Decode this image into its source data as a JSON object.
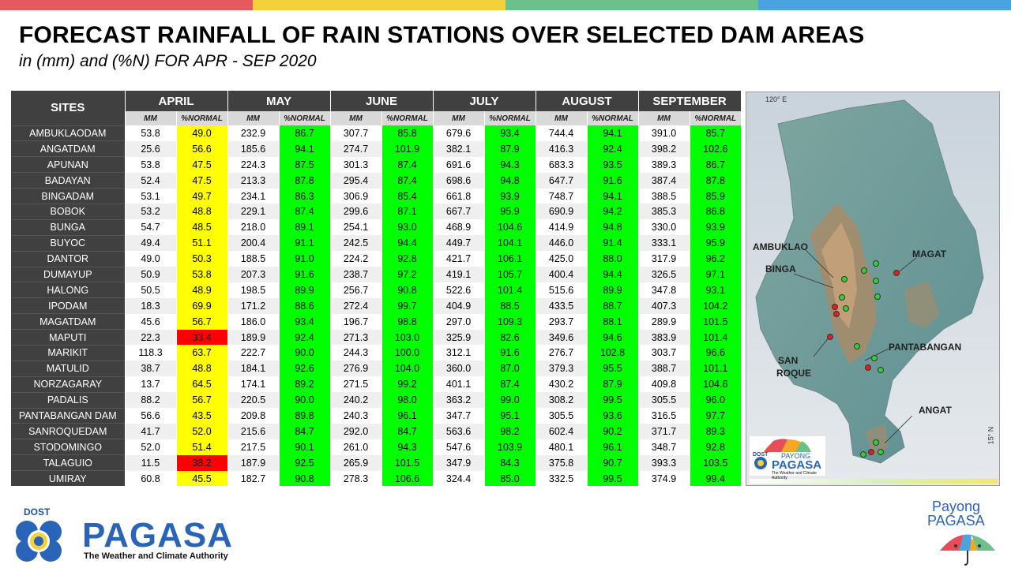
{
  "colors": {
    "header_bg": "#404040",
    "yellow": "#ffff00",
    "green": "#00ff00",
    "red": "#ff0000",
    "topbar": [
      "#e65a5f",
      "#f2d13a",
      "#6cc08b",
      "#4aa3df"
    ]
  },
  "title": "FORECAST RAINFALL OF RAIN STATIONS OVER SELECTED DAM AREAS",
  "subtitle": "in (mm) and (%N) FOR APR - SEP 2020",
  "chart_data": {
    "type": "table",
    "row_header": "SITES",
    "months": [
      "APRIL",
      "MAY",
      "JUNE",
      "JULY",
      "AUGUST",
      "SEPTEMBER"
    ],
    "sub_headers": [
      "MM",
      "%NORMAL"
    ],
    "rows": [
      {
        "site": "AMBUKLAODAM",
        "values": [
          [
            53.8,
            49.0
          ],
          [
            232.9,
            86.7
          ],
          [
            307.7,
            85.8
          ],
          [
            679.6,
            93.4
          ],
          [
            744.4,
            94.1
          ],
          [
            391.0,
            85.7
          ]
        ]
      },
      {
        "site": "ANGATDAM",
        "values": [
          [
            25.6,
            56.6
          ],
          [
            185.6,
            94.1
          ],
          [
            274.7,
            101.9
          ],
          [
            382.1,
            87.9
          ],
          [
            416.3,
            92.4
          ],
          [
            398.2,
            102.6
          ]
        ]
      },
      {
        "site": "APUNAN",
        "values": [
          [
            53.8,
            47.5
          ],
          [
            224.3,
            87.5
          ],
          [
            301.3,
            87.4
          ],
          [
            691.6,
            94.3
          ],
          [
            683.3,
            93.5
          ],
          [
            389.3,
            86.7
          ]
        ]
      },
      {
        "site": "BADAYAN",
        "values": [
          [
            52.4,
            47.5
          ],
          [
            213.3,
            87.8
          ],
          [
            295.4,
            87.4
          ],
          [
            698.6,
            94.8
          ],
          [
            647.7,
            91.6
          ],
          [
            387.4,
            87.8
          ]
        ]
      },
      {
        "site": "BINGADAM",
        "values": [
          [
            53.1,
            49.7
          ],
          [
            234.1,
            86.3
          ],
          [
            306.9,
            85.4
          ],
          [
            661.8,
            93.9
          ],
          [
            748.7,
            94.1
          ],
          [
            388.5,
            85.9
          ]
        ]
      },
      {
        "site": "BOBOK",
        "values": [
          [
            53.2,
            48.8
          ],
          [
            229.1,
            87.4
          ],
          [
            299.6,
            87.1
          ],
          [
            667.7,
            95.9
          ],
          [
            690.9,
            94.2
          ],
          [
            385.3,
            86.8
          ]
        ]
      },
      {
        "site": "BUNGA",
        "values": [
          [
            54.7,
            48.5
          ],
          [
            218.0,
            89.1
          ],
          [
            254.1,
            93.0
          ],
          [
            468.9,
            104.6
          ],
          [
            414.9,
            94.8
          ],
          [
            330.0,
            93.9
          ]
        ]
      },
      {
        "site": "BUYOC",
        "values": [
          [
            49.4,
            51.1
          ],
          [
            200.4,
            91.1
          ],
          [
            242.5,
            94.4
          ],
          [
            449.7,
            104.1
          ],
          [
            446.0,
            91.4
          ],
          [
            333.1,
            95.9
          ]
        ]
      },
      {
        "site": "DANTOR",
        "values": [
          [
            49.0,
            50.3
          ],
          [
            188.5,
            91.0
          ],
          [
            224.2,
            92.8
          ],
          [
            421.7,
            106.1
          ],
          [
            425.0,
            88.0
          ],
          [
            317.9,
            96.2
          ]
        ]
      },
      {
        "site": "DUMAYUP",
        "values": [
          [
            50.9,
            53.8
          ],
          [
            207.3,
            91.6
          ],
          [
            238.7,
            97.2
          ],
          [
            419.1,
            105.7
          ],
          [
            400.4,
            94.4
          ],
          [
            326.5,
            97.1
          ]
        ]
      },
      {
        "site": "HALONG",
        "values": [
          [
            50.5,
            48.9
          ],
          [
            198.5,
            89.9
          ],
          [
            256.7,
            90.8
          ],
          [
            522.6,
            101.4
          ],
          [
            515.6,
            89.9
          ],
          [
            347.8,
            93.1
          ]
        ]
      },
      {
        "site": "IPODAM",
        "values": [
          [
            18.3,
            69.9
          ],
          [
            171.2,
            88.6
          ],
          [
            272.4,
            99.7
          ],
          [
            404.9,
            88.5
          ],
          [
            433.5,
            88.7
          ],
          [
            407.3,
            104.2
          ]
        ]
      },
      {
        "site": "MAGATDAM",
        "values": [
          [
            45.6,
            56.7
          ],
          [
            186.0,
            93.4
          ],
          [
            196.7,
            98.8
          ],
          [
            297.0,
            109.3
          ],
          [
            293.7,
            88.1
          ],
          [
            289.9,
            101.5
          ]
        ]
      },
      {
        "site": "MAPUTI",
        "values": [
          [
            22.3,
            33.4
          ],
          [
            189.9,
            92.4
          ],
          [
            271.3,
            103.0
          ],
          [
            325.9,
            82.6
          ],
          [
            349.6,
            94.6
          ],
          [
            383.9,
            101.4
          ]
        ]
      },
      {
        "site": "MARIKIT",
        "values": [
          [
            118.3,
            63.7
          ],
          [
            222.7,
            90.0
          ],
          [
            244.3,
            100.0
          ],
          [
            312.1,
            91.6
          ],
          [
            276.7,
            102.8
          ],
          [
            303.7,
            96.6
          ]
        ]
      },
      {
        "site": "MATULID",
        "values": [
          [
            38.7,
            48.8
          ],
          [
            184.1,
            92.6
          ],
          [
            276.9,
            104.0
          ],
          [
            360.0,
            87.0
          ],
          [
            379.3,
            95.5
          ],
          [
            388.7,
            101.1
          ]
        ]
      },
      {
        "site": "NORZAGARAY",
        "values": [
          [
            13.7,
            64.5
          ],
          [
            174.1,
            89.2
          ],
          [
            271.5,
            99.2
          ],
          [
            401.1,
            87.4
          ],
          [
            430.2,
            87.9
          ],
          [
            409.8,
            104.6
          ]
        ]
      },
      {
        "site": "PADALIS",
        "values": [
          [
            88.2,
            56.7
          ],
          [
            220.5,
            90.0
          ],
          [
            240.2,
            98.0
          ],
          [
            363.2,
            99.0
          ],
          [
            308.2,
            99.5
          ],
          [
            305.5,
            96.0
          ]
        ]
      },
      {
        "site": "PANTABANGAN DAM",
        "values": [
          [
            56.6,
            43.5
          ],
          [
            209.8,
            89.8
          ],
          [
            240.3,
            96.1
          ],
          [
            347.7,
            95.1
          ],
          [
            305.5,
            93.6
          ],
          [
            316.5,
            97.7
          ]
        ]
      },
      {
        "site": "SANROQUEDAM",
        "values": [
          [
            41.7,
            52.0
          ],
          [
            215.6,
            84.7
          ],
          [
            292.0,
            84.7
          ],
          [
            563.6,
            98.2
          ],
          [
            602.4,
            90.2
          ],
          [
            371.7,
            89.3
          ]
        ]
      },
      {
        "site": "STODOMINGO",
        "values": [
          [
            52.0,
            51.4
          ],
          [
            217.5,
            90.1
          ],
          [
            261.0,
            94.3
          ],
          [
            547.6,
            103.9
          ],
          [
            480.1,
            96.1
          ],
          [
            348.7,
            92.8
          ]
        ]
      },
      {
        "site": "TALAGUIO",
        "values": [
          [
            11.5,
            38.2
          ],
          [
            187.9,
            92.5
          ],
          [
            265.9,
            101.5
          ],
          [
            347.9,
            84.3
          ],
          [
            375.8,
            90.7
          ],
          [
            393.3,
            103.5
          ]
        ]
      },
      {
        "site": "UMIRAY",
        "values": [
          [
            60.8,
            45.5
          ],
          [
            182.7,
            90.8
          ],
          [
            278.3,
            106.6
          ],
          [
            324.4,
            85.0
          ],
          [
            332.5,
            99.5
          ],
          [
            374.9,
            99.4
          ]
        ]
      }
    ],
    "pct_colors": [
      [
        "yellow",
        "green",
        "green",
        "green",
        "green",
        "green"
      ],
      [
        "yellow",
        "green",
        "green",
        "green",
        "green",
        "green"
      ],
      [
        "yellow",
        "green",
        "green",
        "green",
        "green",
        "green"
      ],
      [
        "yellow",
        "green",
        "green",
        "green",
        "green",
        "green"
      ],
      [
        "yellow",
        "green",
        "green",
        "green",
        "green",
        "green"
      ],
      [
        "yellow",
        "green",
        "green",
        "green",
        "green",
        "green"
      ],
      [
        "yellow",
        "green",
        "green",
        "green",
        "green",
        "green"
      ],
      [
        "yellow",
        "green",
        "green",
        "green",
        "green",
        "green"
      ],
      [
        "yellow",
        "green",
        "green",
        "green",
        "green",
        "green"
      ],
      [
        "yellow",
        "green",
        "green",
        "green",
        "green",
        "green"
      ],
      [
        "yellow",
        "green",
        "green",
        "green",
        "green",
        "green"
      ],
      [
        "yellow",
        "green",
        "green",
        "green",
        "green",
        "green"
      ],
      [
        "yellow",
        "green",
        "green",
        "green",
        "green",
        "green"
      ],
      [
        "red",
        "green",
        "green",
        "green",
        "green",
        "green"
      ],
      [
        "yellow",
        "green",
        "green",
        "green",
        "green",
        "green"
      ],
      [
        "yellow",
        "green",
        "green",
        "green",
        "green",
        "green"
      ],
      [
        "yellow",
        "green",
        "green",
        "green",
        "green",
        "green"
      ],
      [
        "yellow",
        "green",
        "green",
        "green",
        "green",
        "green"
      ],
      [
        "yellow",
        "green",
        "green",
        "green",
        "green",
        "green"
      ],
      [
        "yellow",
        "green",
        "green",
        "green",
        "green",
        "green"
      ],
      [
        "yellow",
        "green",
        "green",
        "green",
        "green",
        "green"
      ],
      [
        "red",
        "green",
        "green",
        "green",
        "green",
        "green"
      ],
      [
        "yellow",
        "green",
        "green",
        "green",
        "green",
        "green"
      ]
    ]
  },
  "map": {
    "labels": {
      "ambuklao": "AMBUKLAO",
      "binga": "BINGA",
      "magat": "MAGAT",
      "pantabangan": "PANTABANGAN",
      "san": "SAN",
      "roque": "ROQUE",
      "angat": "ANGAT",
      "lon": "120° E",
      "lat": "15° N"
    },
    "inset_logo": {
      "dost": "DOST",
      "payong": "PAYONG",
      "pagasa": "PAGASA",
      "tagline": "The Weather and Climate Authority"
    }
  },
  "footer": {
    "dost": "DOST",
    "pagasa": "PAGASA",
    "tagline": "The Weather and Climate Authority",
    "payong_line1": "Payong",
    "payong_line2": "PAGASA"
  }
}
